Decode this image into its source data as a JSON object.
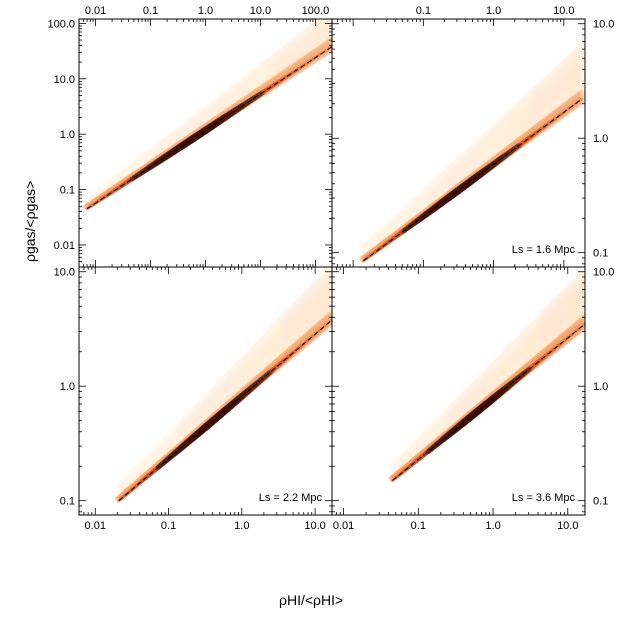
{
  "figure": {
    "ylabel": "ρgas/<ρgas>",
    "xlabel": "ρHI/<ρHI>"
  },
  "chart_data": [
    {
      "type": "heatmap",
      "panel": "top-left",
      "title": "",
      "xscale": "log",
      "yscale": "log",
      "xlim": [
        0.005,
        200.0
      ],
      "ylim": [
        0.004,
        120.0
      ],
      "xticks": [
        0.01,
        0.1,
        1.0,
        10.0,
        100.0
      ],
      "xtick_labels": [
        "0.01",
        "0.1",
        "1.0",
        "10.0",
        "100.0"
      ],
      "xtick_label_position": "top",
      "yticks": [
        0.01,
        0.1,
        1.0,
        10.0,
        100.0
      ],
      "ytick_labels": [
        "0.01",
        "0.1",
        "1.0",
        "10.0",
        "100.0"
      ],
      "ytick_label_position": "left",
      "label": "",
      "fit_line": {
        "x": [
          0.007,
          200.0
        ],
        "y": [
          0.045,
          38.0
        ],
        "style": "dashed"
      },
      "density_ridge": {
        "x": [
          0.007,
          200.0
        ],
        "y": [
          0.045,
          38.0
        ],
        "scatter_up_dex": 0.7,
        "scatter_down_dex": 0.05
      },
      "colormap": [
        "#ffffff",
        "#ffd8a8",
        "#f08030",
        "#c83200",
        "#3c0800"
      ]
    },
    {
      "type": "heatmap",
      "panel": "top-right",
      "title": "",
      "xscale": "log",
      "yscale": "log",
      "xlim": [
        0.005,
        20.0
      ],
      "ylim": [
        0.075,
        11.0
      ],
      "xticks": [
        0.1,
        1.0,
        10.0
      ],
      "xtick_labels": [
        "0.1",
        "1.0",
        "10.0"
      ],
      "xtick_label_position": "top",
      "yticks": [
        0.1,
        1.0,
        10.0
      ],
      "ytick_labels": [
        "0.1",
        "1.0",
        "10.0"
      ],
      "ytick_label_position": "right",
      "label": "Ls = 1.6 Mpc",
      "fit_line": {
        "x": [
          0.014,
          18.0
        ],
        "y": [
          0.085,
          2.2
        ],
        "style": "dashed"
      },
      "density_ridge": {
        "x": [
          0.014,
          18.0
        ],
        "y": [
          0.085,
          2.2
        ],
        "scatter_up_dex": 0.5,
        "scatter_down_dex": 0.08
      },
      "colormap": [
        "#ffffff",
        "#ffd8a8",
        "#f08030",
        "#c83200",
        "#3c0800"
      ]
    },
    {
      "type": "heatmap",
      "panel": "bottom-left",
      "title": "",
      "xscale": "log",
      "yscale": "log",
      "xlim": [
        0.006,
        17.0
      ],
      "ylim": [
        0.075,
        11.0
      ],
      "xticks": [
        0.01,
        0.1,
        1.0,
        10.0
      ],
      "xtick_labels": [
        "0.01",
        "0.1",
        "1.0",
        "10.0"
      ],
      "xtick_label_position": "bottom",
      "yticks": [
        0.1,
        1.0,
        10.0
      ],
      "ytick_labels": [
        "0.1",
        "1.0",
        "10.0"
      ],
      "ytick_label_position": "left",
      "label": "Ls = 2.2 Mpc",
      "fit_line": {
        "x": [
          0.021,
          17.0
        ],
        "y": [
          0.1,
          3.8
        ],
        "style": "dashed"
      },
      "density_ridge": {
        "x": [
          0.021,
          17.0
        ],
        "y": [
          0.1,
          3.8
        ],
        "scatter_up_dex": 0.5,
        "scatter_down_dex": 0.08
      },
      "colormap": [
        "#ffffff",
        "#ffd8a8",
        "#f08030",
        "#c83200",
        "#3c0800"
      ]
    },
    {
      "type": "heatmap",
      "panel": "bottom-right",
      "title": "",
      "xscale": "log",
      "yscale": "log",
      "xlim": [
        0.007,
        17.0
      ],
      "ylim": [
        0.075,
        11.0
      ],
      "xticks": [
        0.01,
        0.1,
        1.0,
        10.0
      ],
      "xtick_labels": [
        "0.01",
        "0.1",
        "1.0",
        "10.0"
      ],
      "xtick_label_position": "bottom",
      "yticks": [
        0.1,
        1.0,
        10.0
      ],
      "ytick_labels": [
        "0.1",
        "1.0",
        "10.0"
      ],
      "ytick_label_position": "right",
      "label": "Ls = 3.6 Mpc",
      "fit_line": {
        "x": [
          0.045,
          17.0
        ],
        "y": [
          0.15,
          3.5
        ],
        "style": "dashed"
      },
      "density_ridge": {
        "x": [
          0.045,
          17.0
        ],
        "y": [
          0.15,
          3.5
        ],
        "scatter_up_dex": 0.5,
        "scatter_down_dex": 0.08
      },
      "colormap": [
        "#ffffff",
        "#ffd8a8",
        "#f08030",
        "#c83200",
        "#3c0800"
      ]
    }
  ]
}
